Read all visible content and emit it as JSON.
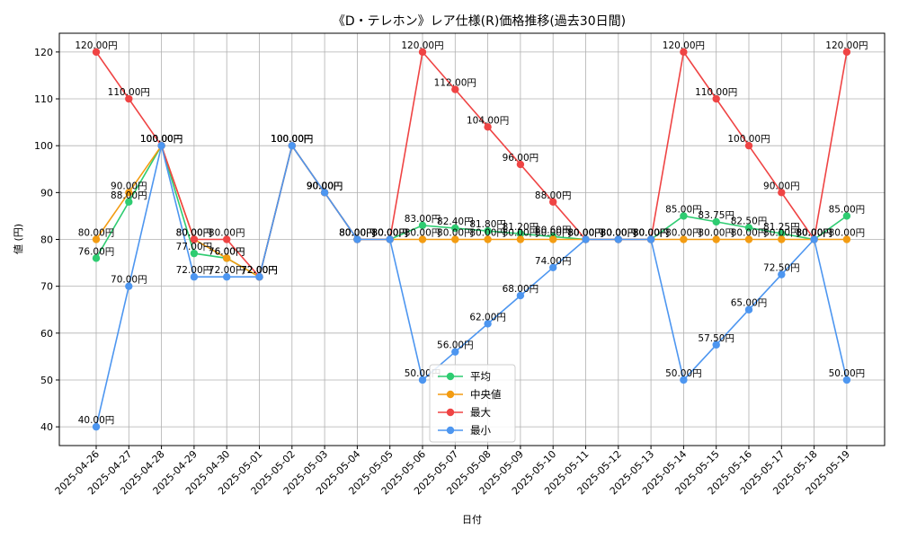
{
  "chart_data": {
    "type": "line",
    "title": "《D・テレホン》レア仕様(R)価格推移(過去30日間)",
    "xlabel": "日付",
    "ylabel": "値 (円)",
    "ylim": [
      36,
      124
    ],
    "yticks": [
      40,
      50,
      60,
      70,
      80,
      90,
      100,
      110,
      120
    ],
    "grid": true,
    "legend_position": "lower-center",
    "label_suffix": "円",
    "categories": [
      "2025-04-26",
      "2025-04-27",
      "2025-04-28",
      "2025-04-29",
      "2025-04-30",
      "2025-05-01",
      "2025-05-02",
      "2025-05-03",
      "2025-05-04",
      "2025-05-05",
      "2025-05-06",
      "2025-05-07",
      "2025-05-08",
      "2025-05-09",
      "2025-05-10",
      "2025-05-11",
      "2025-05-12",
      "2025-05-13",
      "2025-05-14",
      "2025-05-15",
      "2025-05-16",
      "2025-05-17",
      "2025-05-18",
      "2025-05-19"
    ],
    "series": [
      {
        "name": "平均",
        "color": "#2ecc71",
        "values": [
          76,
          88,
          100,
          77,
          76,
          72,
          100,
          90,
          80,
          80,
          83,
          82.4,
          81.8,
          81.2,
          80.6,
          80,
          80,
          80,
          85,
          83.75,
          82.5,
          81.25,
          80,
          85
        ]
      },
      {
        "name": "中央値",
        "color": "#f39c12",
        "values": [
          80,
          90,
          100,
          80,
          76,
          72,
          100,
          90,
          80,
          80,
          80,
          80,
          80,
          80,
          80,
          80,
          80,
          80,
          80,
          80,
          80,
          80,
          80,
          80
        ]
      },
      {
        "name": "最大",
        "color": "#ef4444",
        "values": [
          120,
          110,
          100,
          80,
          80,
          72,
          100,
          90,
          80,
          80,
          120,
          112,
          104,
          96,
          88,
          80,
          80,
          80,
          120,
          110,
          100,
          90,
          80,
          120
        ]
      },
      {
        "name": "最小",
        "color": "#4d96f0",
        "values": [
          40,
          70,
          100,
          72,
          72,
          72,
          100,
          90,
          80,
          80,
          50,
          56,
          62,
          68,
          74,
          80,
          80,
          80,
          50,
          57.5,
          65,
          72.5,
          80,
          50
        ]
      }
    ]
  }
}
